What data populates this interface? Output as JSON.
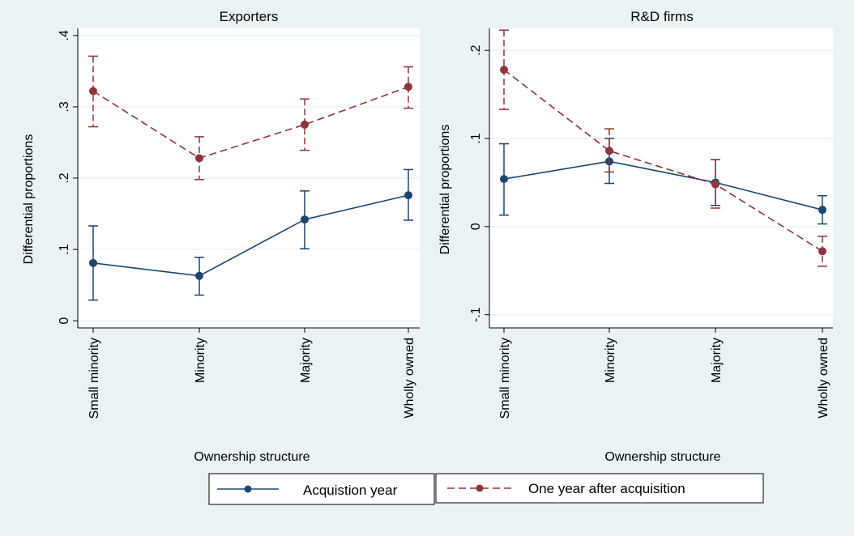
{
  "chart_data": [
    {
      "type": "line",
      "title": "Exporters",
      "xlabel": "Ownership structure",
      "ylabel": "Differential proportions",
      "categories": [
        "Small minority",
        "Minority",
        "Majority",
        "Wholly owned"
      ],
      "ylim": [
        -0.01,
        0.41
      ],
      "yticks": [
        0,
        0.1,
        0.2,
        0.3,
        0.4
      ],
      "ytick_labels": [
        "0",
        ".1",
        ".2",
        ".3",
        ".4"
      ],
      "grid": true,
      "series": [
        {
          "name": "Acquistion year",
          "values": [
            0.081,
            0.063,
            0.142,
            0.176
          ],
          "lower": [
            0.029,
            0.036,
            0.101,
            0.141
          ],
          "upper": [
            0.133,
            0.089,
            0.182,
            0.212
          ]
        },
        {
          "name": "One year after acquisition",
          "values": [
            0.322,
            0.228,
            0.275,
            0.328
          ],
          "lower": [
            0.272,
            0.198,
            0.239,
            0.298
          ],
          "upper": [
            0.371,
            0.258,
            0.311,
            0.356
          ]
        }
      ]
    },
    {
      "type": "line",
      "title": "R&D firms",
      "xlabel": "Ownership structure",
      "ylabel": "Differential proportions",
      "categories": [
        "Small minority",
        "Minority",
        "Majority",
        "Wholly owned"
      ],
      "ylim": [
        -0.115,
        0.225
      ],
      "yticks": [
        -0.1,
        0,
        0.1,
        0.2
      ],
      "ytick_labels": [
        "-.1",
        "0",
        ".1",
        ".2"
      ],
      "grid": true,
      "series": [
        {
          "name": "Acquistion year",
          "values": [
            0.054,
            0.074,
            0.05,
            0.019
          ],
          "lower": [
            0.013,
            0.049,
            0.024,
            0.003
          ],
          "upper": [
            0.094,
            0.1,
            0.076,
            0.035
          ]
        },
        {
          "name": "One year after acquisition",
          "values": [
            0.178,
            0.086,
            0.048,
            -0.028
          ],
          "lower": [
            0.133,
            0.062,
            0.021,
            -0.045
          ],
          "upper": [
            0.223,
            0.111,
            0.076,
            -0.011
          ]
        }
      ]
    }
  ],
  "legend": {
    "position": "bottom",
    "items": [
      {
        "label": "Acquistion year",
        "color": "#1a476f",
        "dash": "solid"
      },
      {
        "label": "One year after acquisition",
        "color": "#90353b",
        "dash": "dashed"
      }
    ]
  },
  "colors": {
    "background": "#eaf2f3",
    "plot_bg": "#ffffff",
    "grid": "#eaf2f3",
    "series1": "#1a476f",
    "series2": "#90353b"
  }
}
